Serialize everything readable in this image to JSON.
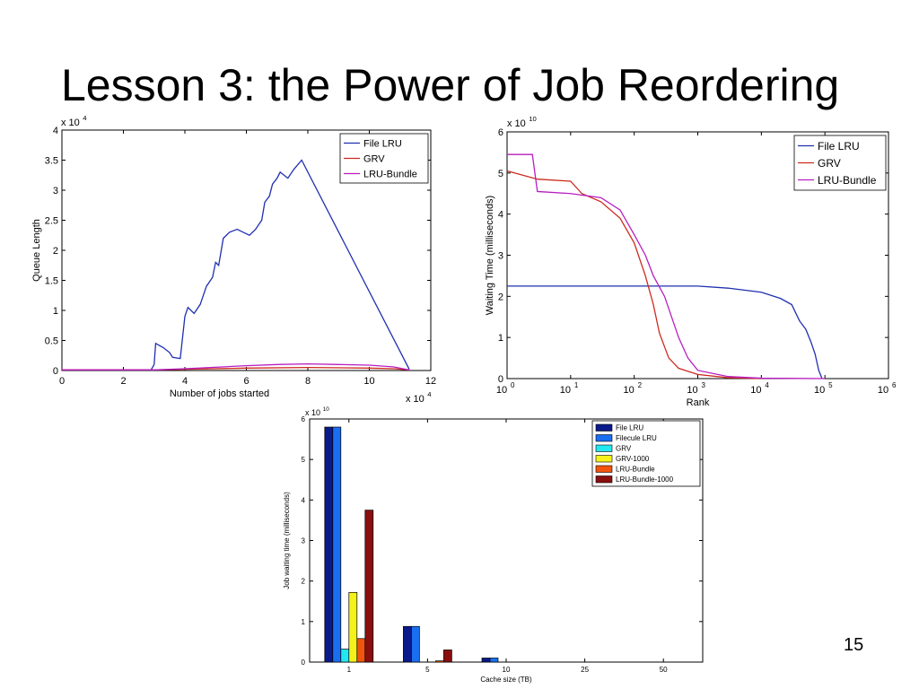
{
  "slide": {
    "title": "Lesson 3: the Power of Job Reordering",
    "page_number": "15"
  },
  "chart_data": [
    {
      "type": "line",
      "xlabel": "Number of jobs started",
      "ylabel": "Queue Length",
      "x_multiplier": "x 10",
      "x_multiplier_exp": "4",
      "y_multiplier": "x 10",
      "y_multiplier_exp": "4",
      "xlim": [
        0,
        12
      ],
      "ylim": [
        0,
        4
      ],
      "xticks": [
        0,
        2,
        4,
        6,
        8,
        10,
        12
      ],
      "yticks": [
        0,
        0.5,
        1,
        1.5,
        2,
        2.5,
        3,
        3.5,
        4
      ],
      "legend_position": "top-right",
      "series": [
        {
          "name": "File LRU",
          "color": "#1f2fb0",
          "points": [
            [
              0,
              0.01
            ],
            [
              2.9,
              0.01
            ],
            [
              3.0,
              0.1
            ],
            [
              3.05,
              0.45
            ],
            [
              3.3,
              0.38
            ],
            [
              3.5,
              0.3
            ],
            [
              3.6,
              0.22
            ],
            [
              3.85,
              0.2
            ],
            [
              4.0,
              0.9
            ],
            [
              4.1,
              1.05
            ],
            [
              4.3,
              0.95
            ],
            [
              4.5,
              1.1
            ],
            [
              4.7,
              1.4
            ],
            [
              4.9,
              1.55
            ],
            [
              5.0,
              1.8
            ],
            [
              5.1,
              1.75
            ],
            [
              5.25,
              2.2
            ],
            [
              5.45,
              2.3
            ],
            [
              5.7,
              2.35
            ],
            [
              5.9,
              2.3
            ],
            [
              6.1,
              2.25
            ],
            [
              6.3,
              2.35
            ],
            [
              6.5,
              2.5
            ],
            [
              6.6,
              2.8
            ],
            [
              6.75,
              2.9
            ],
            [
              6.85,
              3.1
            ],
            [
              7.0,
              3.2
            ],
            [
              7.1,
              3.3
            ],
            [
              7.35,
              3.2
            ],
            [
              7.55,
              3.35
            ],
            [
              7.8,
              3.5
            ],
            [
              11.3,
              0.02
            ]
          ]
        },
        {
          "name": "GRV",
          "color": "#cc2a1e",
          "points": [
            [
              0,
              0.01
            ],
            [
              3.0,
              0.01
            ],
            [
              4.0,
              0.02
            ],
            [
              6.0,
              0.04
            ],
            [
              8.0,
              0.05
            ],
            [
              10.0,
              0.04
            ],
            [
              10.8,
              0.03
            ],
            [
              11.3,
              0.01
            ]
          ]
        },
        {
          "name": "LRU-Bundle",
          "color": "#b81ec0",
          "points": [
            [
              0,
              0.01
            ],
            [
              3.0,
              0.01
            ],
            [
              4.0,
              0.03
            ],
            [
              6.0,
              0.08
            ],
            [
              7.0,
              0.1
            ],
            [
              8.0,
              0.11
            ],
            [
              9.0,
              0.1
            ],
            [
              10.0,
              0.09
            ],
            [
              10.8,
              0.06
            ],
            [
              11.3,
              0.01
            ]
          ]
        }
      ]
    },
    {
      "type": "line",
      "xscale": "log",
      "xlabel": "Rank",
      "ylabel": "Waiting Time (milliseconds)",
      "y_multiplier": "x 10",
      "y_multiplier_exp": "10",
      "xlim": [
        1,
        1000000
      ],
      "ylim": [
        0,
        6
      ],
      "xtick_exponents": [
        "0",
        "1",
        "2",
        "3",
        "4",
        "5",
        "6"
      ],
      "xtick_base": "10",
      "yticks": [
        0,
        1,
        2,
        3,
        4,
        5,
        6
      ],
      "legend_position": "top-right",
      "series": [
        {
          "name": "File LRU",
          "color": "#1f2fb0",
          "points": [
            [
              1,
              2.25
            ],
            [
              1000,
              2.25
            ],
            [
              3000,
              2.2
            ],
            [
              10000,
              2.1
            ],
            [
              20000,
              1.95
            ],
            [
              30000,
              1.8
            ],
            [
              40000,
              1.4
            ],
            [
              50000,
              1.2
            ],
            [
              60000,
              0.9
            ],
            [
              70000,
              0.6
            ],
            [
              80000,
              0.2
            ],
            [
              90000,
              0
            ]
          ]
        },
        {
          "name": "GRV",
          "color": "#cc2a1e",
          "points": [
            [
              1,
              5.05
            ],
            [
              3,
              4.85
            ],
            [
              10,
              4.8
            ],
            [
              15,
              4.5
            ],
            [
              30,
              4.3
            ],
            [
              60,
              3.9
            ],
            [
              100,
              3.3
            ],
            [
              150,
              2.5
            ],
            [
              200,
              1.8
            ],
            [
              250,
              1.1
            ],
            [
              350,
              0.5
            ],
            [
              500,
              0.25
            ],
            [
              1000,
              0.1
            ],
            [
              3000,
              0.02
            ],
            [
              10000,
              0
            ]
          ]
        },
        {
          "name": "LRU-Bundle",
          "color": "#b81ec0",
          "points": [
            [
              1,
              5.45
            ],
            [
              2.5,
              5.45
            ],
            [
              3,
              4.55
            ],
            [
              10,
              4.5
            ],
            [
              30,
              4.4
            ],
            [
              60,
              4.1
            ],
            [
              100,
              3.5
            ],
            [
              150,
              3.0
            ],
            [
              200,
              2.5
            ],
            [
              300,
              2.0
            ],
            [
              500,
              1.0
            ],
            [
              700,
              0.5
            ],
            [
              1000,
              0.2
            ],
            [
              3000,
              0.05
            ],
            [
              10000,
              0.01
            ],
            [
              100000,
              0
            ]
          ]
        }
      ]
    },
    {
      "type": "bar",
      "xlabel": "Cache size (TB)",
      "ylabel": "Job waiting time (milliseconds)",
      "y_multiplier": "x 10",
      "y_multiplier_exp": "10",
      "categories": [
        "1",
        "5",
        "10",
        "25",
        "50"
      ],
      "ylim": [
        0,
        6
      ],
      "yticks": [
        0,
        1,
        2,
        3,
        4,
        5,
        6
      ],
      "legend_position": "top-right",
      "series": [
        {
          "name": "File LRU",
          "color": "#0a1a8a",
          "values": [
            5.8,
            0.88,
            0.1,
            0,
            0
          ]
        },
        {
          "name": "Filecule LRU",
          "color": "#1a6ef0",
          "values": [
            5.8,
            0.88,
            0.1,
            0,
            0
          ]
        },
        {
          "name": "GRV",
          "color": "#22e8f0",
          "values": [
            0.32,
            0,
            0,
            0,
            0
          ]
        },
        {
          "name": "GRV-1000",
          "color": "#f4f21a",
          "values": [
            1.72,
            0,
            0,
            0,
            0
          ]
        },
        {
          "name": "LRU-Bundle",
          "color": "#f2540e",
          "values": [
            0.58,
            0.03,
            0,
            0,
            0
          ]
        },
        {
          "name": "LRU-Bundle-1000",
          "color": "#8a0e0e",
          "values": [
            3.75,
            0.3,
            0,
            0,
            0
          ]
        }
      ]
    }
  ]
}
